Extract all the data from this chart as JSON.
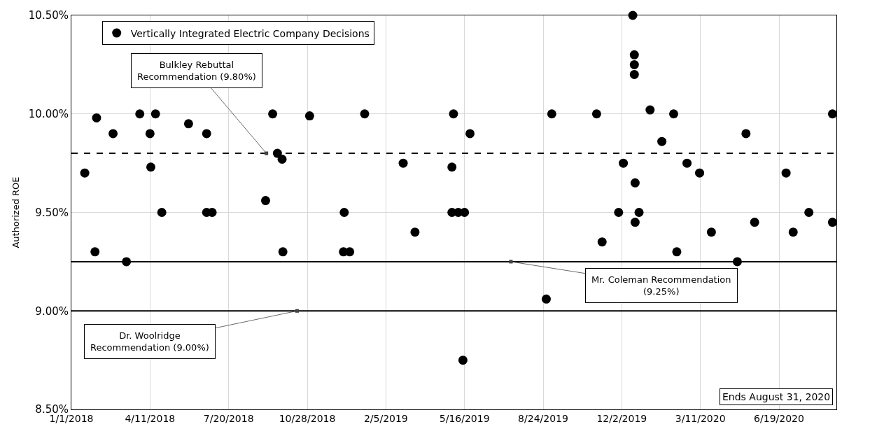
{
  "chart_data": {
    "type": "scatter",
    "ylabel": "Authorized ROE",
    "x": [
      "2018-01-18",
      "2018-01-31",
      "2018-02-02",
      "2018-02-23",
      "2018-03-12",
      "2018-03-29",
      "2018-04-11",
      "2018-04-12",
      "2018-04-18",
      "2018-04-26",
      "2018-05-30",
      "2018-06-22",
      "2018-06-22",
      "2018-06-29",
      "2018-09-05",
      "2018-09-14",
      "2018-09-20",
      "2018-09-26",
      "2018-09-27",
      "2018-10-31",
      "2018-12-13",
      "2018-12-14",
      "2018-12-21",
      "2019-01-09",
      "2019-02-27",
      "2019-03-14",
      "2019-04-30",
      "2019-04-30",
      "2019-05-02",
      "2019-05-08",
      "2019-05-14",
      "2019-05-16",
      "2019-05-23",
      "2019-08-28",
      "2019-09-04",
      "2019-10-31",
      "2019-11-07",
      "2019-11-28",
      "2019-12-04",
      "2019-12-16",
      "2019-12-18",
      "2019-12-18",
      "2019-12-18",
      "2019-12-19",
      "2019-12-19",
      "2019-12-24",
      "2020-01-07",
      "2020-01-22",
      "2020-02-06",
      "2020-02-10",
      "2020-02-23",
      "2020-03-10",
      "2020-03-25",
      "2020-04-27",
      "2020-05-08",
      "2020-05-19",
      "2020-06-28",
      "2020-07-07",
      "2020-07-27",
      "2020-08-26",
      "2020-08-26"
    ],
    "series": [
      {
        "name": "Vertically Integrated Electric Company Decisions",
        "color": "#000000",
        "values": [
          9.7,
          9.3,
          9.98,
          9.9,
          9.25,
          10.0,
          9.9,
          9.73,
          10.0,
          9.5,
          9.95,
          9.9,
          9.5,
          9.5,
          9.56,
          10.0,
          9.8,
          9.77,
          9.3,
          9.99,
          9.3,
          9.5,
          9.3,
          10.0,
          9.75,
          9.4,
          9.73,
          9.5,
          10.0,
          9.5,
          8.75,
          9.5,
          9.9,
          9.06,
          10.0,
          10.0,
          9.35,
          9.5,
          9.75,
          10.5,
          10.3,
          10.25,
          10.2,
          9.65,
          9.45,
          9.5,
          10.02,
          9.86,
          10.0,
          9.3,
          9.75,
          9.7,
          9.4,
          9.25,
          9.9,
          9.45,
          9.7,
          9.4,
          9.5,
          10.0,
          9.45
        ]
      }
    ],
    "xlim": [
      "2018-01-01",
      "2020-08-31"
    ],
    "xticks": [
      {
        "value": "2018-01-01",
        "label": "1/1/2018"
      },
      {
        "value": "2018-04-11",
        "label": "4/11/2018"
      },
      {
        "value": "2018-07-20",
        "label": "7/20/2018"
      },
      {
        "value": "2018-10-28",
        "label": "10/28/2018"
      },
      {
        "value": "2019-02-05",
        "label": "2/5/2019"
      },
      {
        "value": "2019-05-16",
        "label": "5/16/2019"
      },
      {
        "value": "2019-08-24",
        "label": "8/24/2019"
      },
      {
        "value": "2019-12-02",
        "label": "12/2/2019"
      },
      {
        "value": "2020-03-11",
        "label": "3/11/2020"
      },
      {
        "value": "2020-06-19",
        "label": "6/19/2020"
      }
    ],
    "ylim": [
      8.5,
      10.5
    ],
    "yticks": [
      {
        "value": 8.5,
        "label": "8.50%"
      },
      {
        "value": 9.0,
        "label": "9.00%"
      },
      {
        "value": 9.5,
        "label": "9.50%"
      },
      {
        "value": 10.0,
        "label": "10.00%"
      },
      {
        "value": 10.5,
        "label": "10.50%"
      }
    ],
    "ref_lines": [
      {
        "axis": "y",
        "value": 9.8,
        "label": "Bulkley Rebuttal Recommendation (9.80%)",
        "line_style": "dashed",
        "color": "#000000"
      },
      {
        "axis": "y",
        "value": 9.25,
        "label": "Mr. Coleman Recommendation (9.25%)",
        "line_style": "solid",
        "color": "#000000"
      },
      {
        "axis": "y",
        "value": 9.0,
        "label": "Dr. Woolridge Recommendation (9.00%)",
        "line_style": "solid",
        "color": "#000000"
      }
    ],
    "annotations": [
      "Ends August 31, 2020"
    ],
    "grid": true,
    "legend": "top left",
    "marker": "circle"
  }
}
